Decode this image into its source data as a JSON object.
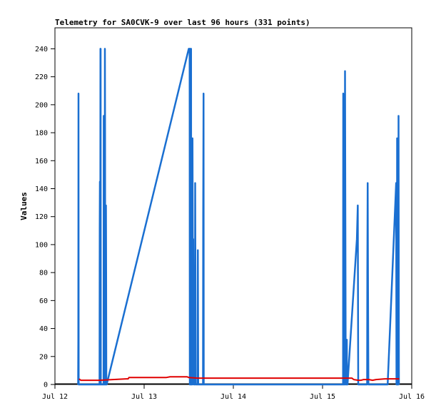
{
  "chart_data": {
    "type": "line",
    "title": "Telemetry for SA0CVK-9 over last 96 hours (331 points)",
    "ylabel": "Values",
    "xlabel": "",
    "ylim": [
      0,
      255
    ],
    "yticks": [
      0,
      20,
      40,
      60,
      80,
      100,
      120,
      140,
      160,
      180,
      200,
      220,
      240
    ],
    "xlim": [
      0,
      4
    ],
    "x_unit": "days since Jul 12 00:00",
    "xticks": [
      {
        "value": 0,
        "label": "Jul 12"
      },
      {
        "value": 1,
        "label": "Jul 13"
      },
      {
        "value": 2,
        "label": "Jul 14"
      },
      {
        "value": 3,
        "label": "Jul 15"
      },
      {
        "value": 4,
        "label": "Jul 16"
      }
    ],
    "grid": false,
    "legend": "none",
    "series": [
      {
        "name": "",
        "color": "#1a6fd1",
        "points": [
          [
            0.26,
            0
          ],
          [
            0.262,
            32
          ],
          [
            0.264,
            208
          ],
          [
            0.266,
            0
          ],
          [
            0.5,
            0
          ],
          [
            0.502,
            112
          ],
          [
            0.504,
            145
          ],
          [
            0.506,
            0
          ],
          [
            0.508,
            0
          ],
          [
            0.51,
            240
          ],
          [
            0.512,
            240
          ],
          [
            0.514,
            0
          ],
          [
            0.545,
            0
          ],
          [
            0.547,
            192
          ],
          [
            0.549,
            192
          ],
          [
            0.551,
            0
          ],
          [
            0.558,
            0
          ],
          [
            0.56,
            240
          ],
          [
            0.562,
            176
          ],
          [
            0.564,
            0
          ],
          [
            0.57,
            0
          ],
          [
            0.572,
            128
          ],
          [
            0.574,
            80
          ],
          [
            0.576,
            0
          ],
          [
            0.58,
            0
          ],
          [
            1.5,
            240
          ],
          [
            1.51,
            240
          ],
          [
            1.512,
            0
          ],
          [
            1.52,
            0
          ],
          [
            1.522,
            240
          ],
          [
            1.526,
            240
          ],
          [
            1.528,
            0
          ],
          [
            1.54,
            0
          ],
          [
            1.542,
            176
          ],
          [
            1.546,
            72
          ],
          [
            1.55,
            104
          ],
          [
            1.556,
            0
          ],
          [
            1.57,
            0
          ],
          [
            1.572,
            144
          ],
          [
            1.578,
            0
          ],
          [
            1.6,
            0
          ],
          [
            1.602,
            96
          ],
          [
            1.606,
            0
          ],
          [
            1.66,
            0
          ],
          [
            1.662,
            120
          ],
          [
            1.666,
            208
          ],
          [
            1.668,
            0
          ],
          [
            3.23,
            0
          ],
          [
            3.232,
            208
          ],
          [
            3.236,
            0
          ],
          [
            3.25,
            0
          ],
          [
            3.252,
            224
          ],
          [
            3.256,
            112
          ],
          [
            3.26,
            0
          ],
          [
            3.27,
            0
          ],
          [
            3.272,
            32
          ],
          [
            3.274,
            0
          ],
          [
            3.28,
            0
          ],
          [
            3.385,
            104
          ],
          [
            3.395,
            128
          ],
          [
            3.4,
            0
          ],
          [
            3.5,
            0
          ],
          [
            3.502,
            80
          ],
          [
            3.506,
            144
          ],
          [
            3.51,
            64
          ],
          [
            3.514,
            0
          ],
          [
            3.73,
            0
          ],
          [
            3.82,
            136
          ],
          [
            3.825,
            144
          ],
          [
            3.829,
            0
          ],
          [
            3.834,
            0
          ],
          [
            3.836,
            176
          ],
          [
            3.84,
            0
          ],
          [
            3.85,
            0
          ],
          [
            3.852,
            192
          ],
          [
            3.856,
            0
          ]
        ]
      },
      {
        "name": "",
        "color": "#e00000",
        "points": [
          [
            0.27,
            4
          ],
          [
            0.29,
            3
          ],
          [
            0.5,
            3
          ],
          [
            0.8,
            4
          ],
          [
            0.82,
            4
          ],
          [
            0.83,
            5
          ],
          [
            1.25,
            5
          ],
          [
            1.29,
            5.5
          ],
          [
            1.48,
            5.5
          ],
          [
            1.5,
            5
          ],
          [
            1.6,
            4.5
          ],
          [
            2.0,
            4.5
          ],
          [
            3.0,
            4.5
          ],
          [
            3.33,
            4.5
          ],
          [
            3.35,
            3.5
          ],
          [
            3.4,
            3
          ],
          [
            3.43,
            3
          ],
          [
            3.46,
            3.5
          ],
          [
            3.52,
            3.5
          ],
          [
            3.56,
            3
          ],
          [
            3.6,
            3.5
          ],
          [
            3.7,
            4
          ],
          [
            3.86,
            4
          ]
        ]
      }
    ]
  }
}
